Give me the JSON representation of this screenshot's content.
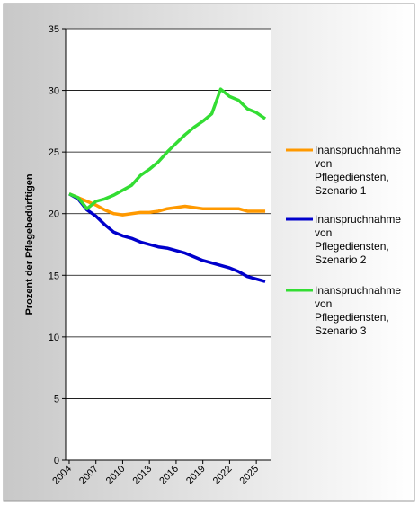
{
  "chart_data": {
    "type": "line",
    "y_label": "Prozent der Pflegebedürftigen",
    "x": [
      2004,
      2005,
      2006,
      2007,
      2008,
      2009,
      2010,
      2011,
      2012,
      2013,
      2014,
      2015,
      2016,
      2017,
      2018,
      2019,
      2020,
      2021,
      2022,
      2023,
      2024,
      2025,
      2026
    ],
    "series": [
      {
        "name": "Inanspruchnahme von Pflegediensten, Szenario 1",
        "color": "#ff9900",
        "values": [
          21.6,
          21.3,
          21.0,
          20.7,
          20.3,
          20.0,
          19.9,
          20.0,
          20.1,
          20.1,
          20.2,
          20.4,
          20.5,
          20.6,
          20.5,
          20.4,
          20.4,
          20.4,
          20.4,
          20.4,
          20.2,
          20.2,
          20.2
        ]
      },
      {
        "name": "Inanspruchnahme von Pflegediensten, Szenario 2",
        "color": "#0000cc",
        "values": [
          21.6,
          21.2,
          20.3,
          19.8,
          19.1,
          18.5,
          18.2,
          18.0,
          17.7,
          17.5,
          17.3,
          17.2,
          17.0,
          16.8,
          16.5,
          16.2,
          16.0,
          15.8,
          15.6,
          15.3,
          14.9,
          14.7,
          14.5
        ]
      },
      {
        "name": "Inanspruchnahme von Pflegediensten, Szenario 3",
        "color": "#33dd33",
        "values": [
          21.6,
          21.3,
          20.4,
          21.0,
          21.2,
          21.5,
          21.9,
          22.3,
          23.1,
          23.6,
          24.2,
          25.0,
          25.7,
          26.4,
          27.0,
          27.5,
          28.1,
          30.1,
          29.5,
          29.2,
          28.5,
          28.2,
          27.7
        ]
      }
    ],
    "xlim": [
      2003.6,
      2026.6
    ],
    "xticks": [
      2004,
      2007,
      2010,
      2013,
      2016,
      2019,
      2022,
      2025
    ],
    "ylim": [
      0,
      35
    ],
    "yticks": [
      0,
      5,
      10,
      15,
      20,
      25,
      30,
      35
    ],
    "grid": true
  }
}
